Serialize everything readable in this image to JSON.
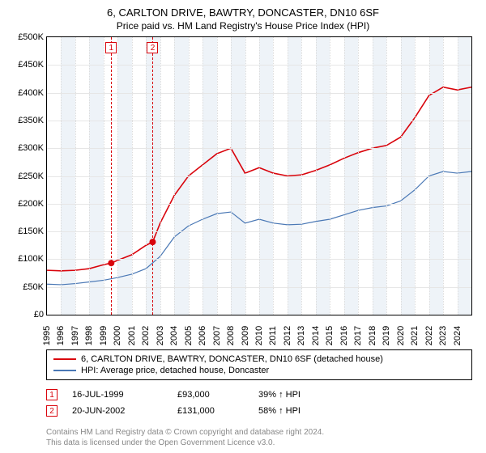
{
  "title_line1": "6, CARLTON DRIVE, BAWTRY, DONCASTER, DN10 6SF",
  "title_line2": "Price paid vs. HM Land Registry's House Price Index (HPI)",
  "chart": {
    "type": "line",
    "background_color": "#ffffff",
    "border_color": "#000000",
    "grid_h_color": "#e6e6e6",
    "grid_v_color": "#dcdcdc",
    "xlim": [
      1995,
      2025
    ],
    "ylim": [
      0,
      500000
    ],
    "yticks": [
      0,
      50000,
      100000,
      150000,
      200000,
      250000,
      300000,
      350000,
      400000,
      450000,
      500000
    ],
    "ytick_labels": [
      "£0",
      "£50K",
      "£100K",
      "£150K",
      "£200K",
      "£250K",
      "£300K",
      "£350K",
      "£400K",
      "£450K",
      "£500K"
    ],
    "xticks": [
      1995,
      1996,
      1997,
      1998,
      1999,
      2000,
      2001,
      2002,
      2003,
      2004,
      2005,
      2006,
      2007,
      2008,
      2009,
      2010,
      2011,
      2012,
      2013,
      2014,
      2015,
      2016,
      2017,
      2018,
      2019,
      2020,
      2021,
      2022,
      2023,
      2024
    ],
    "xtick_labels": [
      "1995",
      "1996",
      "1997",
      "1998",
      "1999",
      "2000",
      "2001",
      "2002",
      "2003",
      "2004",
      "2005",
      "2006",
      "2007",
      "2008",
      "2009",
      "2010",
      "2011",
      "2012",
      "2013",
      "2014",
      "2015",
      "2016",
      "2017",
      "2018",
      "2019",
      "2020",
      "2021",
      "2022",
      "2023",
      "2024"
    ],
    "alt_band_color": "#eef3f8",
    "series": [
      {
        "name": "6, CARLTON DRIVE, BAWTRY, DONCASTER, DN10 6SF (detached house)",
        "color": "#d9040c",
        "line_width": 1.6,
        "points": [
          [
            1995,
            80000
          ],
          [
            1996,
            79000
          ],
          [
            1997,
            80000
          ],
          [
            1998,
            83000
          ],
          [
            1999,
            90000
          ],
          [
            1999.54,
            93000
          ],
          [
            2000,
            98000
          ],
          [
            2001,
            108000
          ],
          [
            2002,
            125000
          ],
          [
            2002.47,
            131000
          ],
          [
            2003,
            165000
          ],
          [
            2004,
            215000
          ],
          [
            2005,
            250000
          ],
          [
            2006,
            270000
          ],
          [
            2007,
            290000
          ],
          [
            2008,
            300000
          ],
          [
            2009,
            255000
          ],
          [
            2010,
            265000
          ],
          [
            2011,
            255000
          ],
          [
            2012,
            250000
          ],
          [
            2013,
            252000
          ],
          [
            2014,
            260000
          ],
          [
            2015,
            270000
          ],
          [
            2016,
            282000
          ],
          [
            2017,
            292000
          ],
          [
            2018,
            300000
          ],
          [
            2019,
            305000
          ],
          [
            2020,
            320000
          ],
          [
            2021,
            355000
          ],
          [
            2022,
            395000
          ],
          [
            2023,
            410000
          ],
          [
            2024,
            405000
          ],
          [
            2025,
            410000
          ]
        ]
      },
      {
        "name": "HPI: Average price, detached house, Doncaster",
        "color": "#4a78b5",
        "line_width": 1.2,
        "points": [
          [
            1995,
            55000
          ],
          [
            1996,
            54000
          ],
          [
            1997,
            56000
          ],
          [
            1998,
            59000
          ],
          [
            1999,
            62000
          ],
          [
            2000,
            67000
          ],
          [
            2001,
            73000
          ],
          [
            2002,
            83000
          ],
          [
            2003,
            105000
          ],
          [
            2004,
            140000
          ],
          [
            2005,
            160000
          ],
          [
            2006,
            172000
          ],
          [
            2007,
            182000
          ],
          [
            2008,
            185000
          ],
          [
            2009,
            165000
          ],
          [
            2010,
            172000
          ],
          [
            2011,
            165000
          ],
          [
            2012,
            162000
          ],
          [
            2013,
            163000
          ],
          [
            2014,
            168000
          ],
          [
            2015,
            172000
          ],
          [
            2016,
            180000
          ],
          [
            2017,
            188000
          ],
          [
            2018,
            193000
          ],
          [
            2019,
            196000
          ],
          [
            2020,
            205000
          ],
          [
            2021,
            225000
          ],
          [
            2022,
            250000
          ],
          [
            2023,
            258000
          ],
          [
            2024,
            255000
          ],
          [
            2025,
            258000
          ]
        ]
      }
    ],
    "sale_markers": [
      {
        "n": 1,
        "x": 1999.54,
        "y": 93000,
        "line_color": "#d9040c"
      },
      {
        "n": 2,
        "x": 2002.47,
        "y": 131000,
        "line_color": "#d9040c"
      }
    ]
  },
  "legend": {
    "border_color": "#000000",
    "items": [
      {
        "color": "#d9040c",
        "label": "6, CARLTON DRIVE, BAWTRY, DONCASTER, DN10 6SF (detached house)"
      },
      {
        "color": "#4a78b5",
        "label": "HPI: Average price, detached house, Doncaster"
      }
    ]
  },
  "sales_table": {
    "rows": [
      {
        "n": 1,
        "border_color": "#d9040c",
        "date": "16-JUL-1999",
        "price": "£93,000",
        "delta": "39% ↑ HPI"
      },
      {
        "n": 2,
        "border_color": "#d9040c",
        "date": "20-JUN-2002",
        "price": "£131,000",
        "delta": "58% ↑ HPI"
      }
    ]
  },
  "credit_line1": "Contains HM Land Registry data © Crown copyright and database right 2024.",
  "credit_line2": "This data is licensed under the Open Government Licence v3.0."
}
